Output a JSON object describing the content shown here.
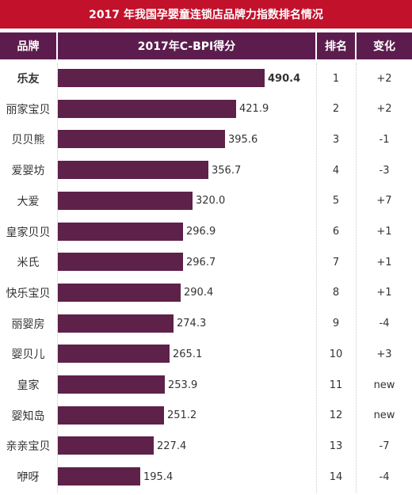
{
  "title": "2017 年我国孕婴童连锁店品牌力指数排名情况",
  "header": {
    "brand": "品牌",
    "score": "2017年C-BPI得分",
    "rank": "排名",
    "change": "变化"
  },
  "colors": {
    "title_background": "#c2112b",
    "header_background": "#5c1d4e",
    "bar": "#5e2149"
  },
  "chart_data": {
    "type": "bar",
    "orientation": "horizontal",
    "title": "2017 年我国孕婴童连锁店品牌力指数排名情况",
    "categories": [
      "乐友",
      "丽家宝贝",
      "贝贝熊",
      "爱婴坊",
      "大爱",
      "皇家贝贝",
      "米氏",
      "快乐宝贝",
      "丽婴房",
      "婴贝儿",
      "皇家",
      "婴知岛",
      "亲亲宝贝",
      "咿呀"
    ],
    "values": [
      490.4,
      421.9,
      395.6,
      356.7,
      320.0,
      296.9,
      296.7,
      290.4,
      274.3,
      265.1,
      253.9,
      251.2,
      227.4,
      195.4
    ],
    "value_labels": [
      "490.4",
      "421.9",
      "395.6",
      "356.7",
      "320.0",
      "296.9",
      "296.7",
      "290.4",
      "274.3",
      "265.1",
      "253.9",
      "251.2",
      "227.4",
      "195.4"
    ],
    "ranks": [
      "1",
      "2",
      "3",
      "4",
      "5",
      "6",
      "7",
      "8",
      "9",
      "10",
      "11",
      "12",
      "13",
      "14"
    ],
    "changes": [
      "+2",
      "+2",
      "-1",
      "-3",
      "+7",
      "+1",
      "+1",
      "+1",
      "-4",
      "+3",
      "new",
      "new",
      "-7",
      "-4"
    ],
    "xlim": [
      0,
      490.4
    ],
    "grid": false,
    "legend": "none"
  }
}
